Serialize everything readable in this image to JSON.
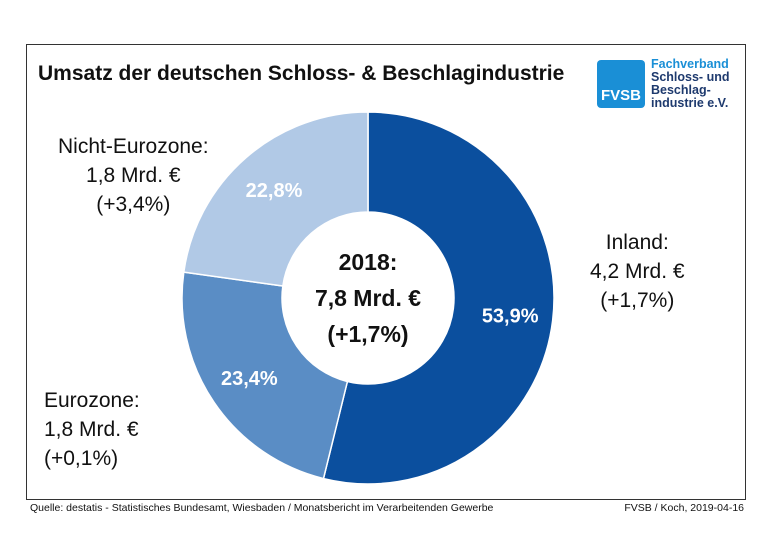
{
  "chart_data": {
    "type": "pie",
    "donut": true,
    "title": "Umsatz der deutschen Schloss- & Beschlagindustrie",
    "center_label": [
      "2018:",
      "7,8 Mrd. €",
      "(+1,7%)"
    ],
    "slices": [
      {
        "name": "Inland",
        "share": 53.9,
        "share_label": "53,9%",
        "value_label": "4,2 Mrd. €",
        "change": "(+1,7%)",
        "color": "#0b4f9e"
      },
      {
        "name": "Eurozone",
        "share": 23.4,
        "share_label": "23,4%",
        "value_label": "1,8 Mrd. €",
        "change": "(+0,1%)",
        "color": "#5a8dc5"
      },
      {
        "name": "Nicht-Eurozone",
        "share": 22.8,
        "share_label": "22,8%",
        "value_label": "1,8 Mrd. €",
        "change": "(+3,4%)",
        "color": "#b1c9e6"
      }
    ],
    "legend_labels": [
      "Inland:",
      "Eurozone:",
      "Nicht-Eurozone:"
    ]
  },
  "logo": {
    "abbr": "FVSB",
    "lines": [
      "Fachverband",
      "Schloss- und",
      "Beschlag-",
      "industrie e.V."
    ]
  },
  "footer": {
    "source": "Quelle: destatis - Statistisches Bundesamt, Wiesbaden / Monatsbericht im Verarbeitenden Gewerbe",
    "credit": "FVSB / Koch, 2019-04-16"
  }
}
